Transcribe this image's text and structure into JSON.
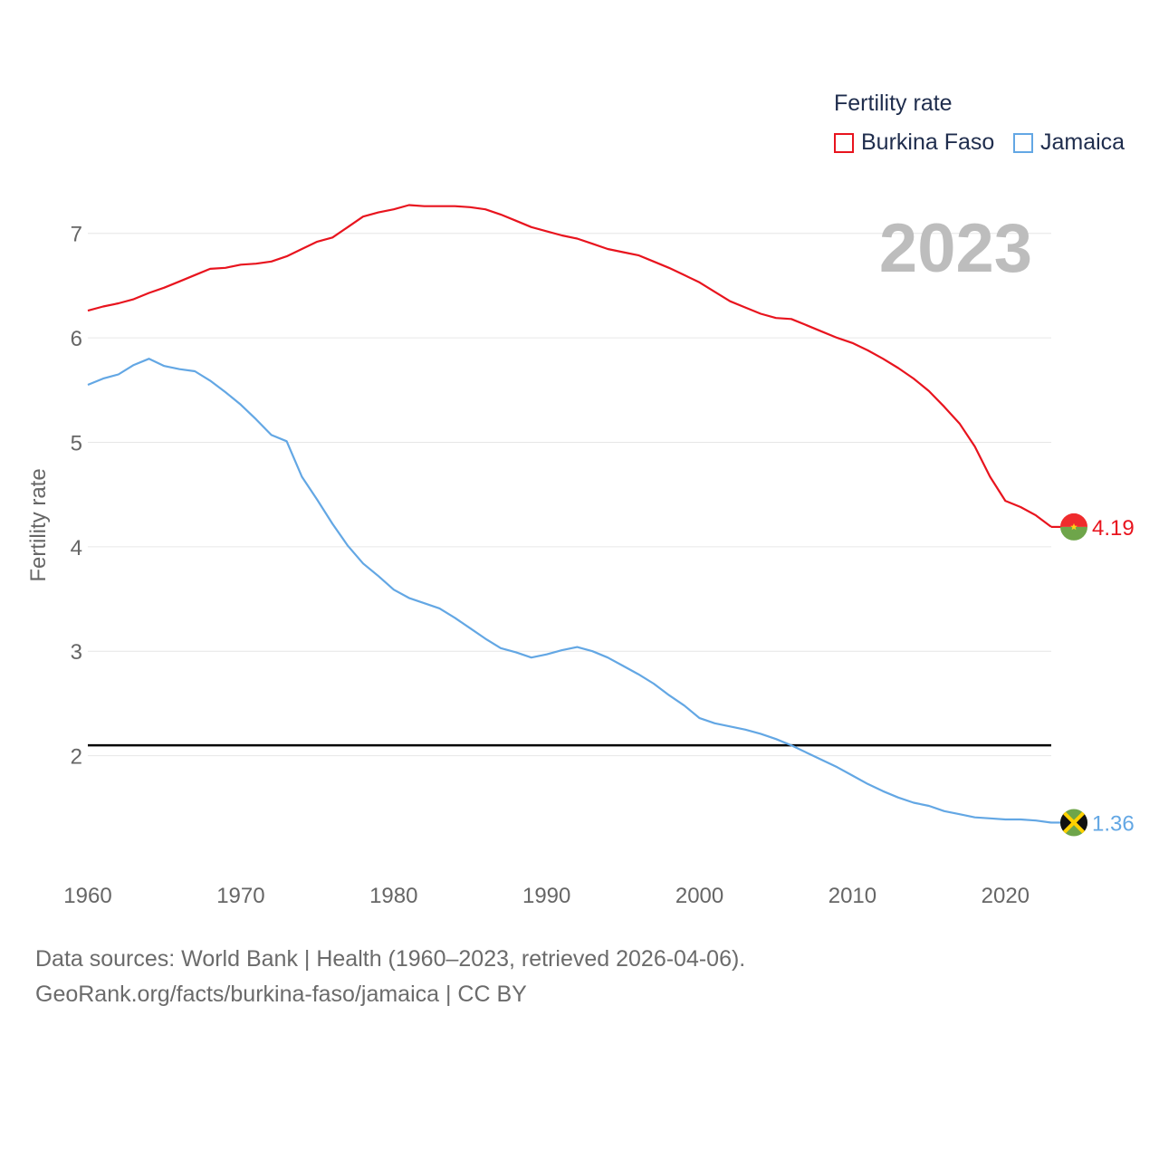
{
  "legend": {
    "title": "Fertility rate",
    "items": [
      {
        "name": "Burkina Faso",
        "color": "#e8141e"
      },
      {
        "name": "Jamaica",
        "color": "#63a7e4"
      }
    ]
  },
  "year_label": "2023",
  "footer": {
    "line1": "Data sources: World Bank | Health (1960–2023, retrieved 2026-04-06).",
    "line2": "GeoRank.org/facts/burkina-faso/jamaica | CC BY"
  },
  "chart_data": {
    "type": "line",
    "title": "",
    "xlabel": "",
    "ylabel": "Fertility rate",
    "xlim": [
      1960,
      2023
    ],
    "ylim": [
      1.0,
      7.5
    ],
    "x_ticks": [
      1960,
      1970,
      1980,
      1990,
      2000,
      2010,
      2020
    ],
    "y_ticks": [
      2,
      3,
      4,
      5,
      6,
      7
    ],
    "reference_line": 2.1,
    "grid": true,
    "x": [
      1960,
      1961,
      1962,
      1963,
      1964,
      1965,
      1966,
      1967,
      1968,
      1969,
      1970,
      1971,
      1972,
      1973,
      1974,
      1975,
      1976,
      1977,
      1978,
      1979,
      1980,
      1981,
      1982,
      1983,
      1984,
      1985,
      1986,
      1987,
      1988,
      1989,
      1990,
      1991,
      1992,
      1993,
      1994,
      1995,
      1996,
      1997,
      1998,
      1999,
      2000,
      2001,
      2002,
      2003,
      2004,
      2005,
      2006,
      2007,
      2008,
      2009,
      2010,
      2011,
      2012,
      2013,
      2014,
      2015,
      2016,
      2017,
      2018,
      2019,
      2020,
      2021,
      2022,
      2023
    ],
    "series": [
      {
        "name": "Burkina Faso",
        "color": "#e8141e",
        "end_label": "4.19",
        "values": [
          6.26,
          6.3,
          6.33,
          6.37,
          6.43,
          6.48,
          6.54,
          6.6,
          6.66,
          6.67,
          6.7,
          6.71,
          6.73,
          6.78,
          6.85,
          6.92,
          6.96,
          7.06,
          7.16,
          7.2,
          7.23,
          7.27,
          7.26,
          7.26,
          7.26,
          7.25,
          7.23,
          7.18,
          7.12,
          7.06,
          7.02,
          6.98,
          6.95,
          6.9,
          6.85,
          6.82,
          6.79,
          6.73,
          6.67,
          6.6,
          6.53,
          6.44,
          6.35,
          6.29,
          6.23,
          6.19,
          6.18,
          6.12,
          6.06,
          6.0,
          5.95,
          5.88,
          5.8,
          5.71,
          5.61,
          5.49,
          5.34,
          5.18,
          4.96,
          4.67,
          4.44,
          4.38,
          4.3,
          4.19
        ]
      },
      {
        "name": "Jamaica",
        "color": "#63a7e4",
        "end_label": "1.36",
        "values": [
          5.55,
          5.61,
          5.65,
          5.74,
          5.8,
          5.73,
          5.7,
          5.68,
          5.59,
          5.48,
          5.36,
          5.22,
          5.07,
          5.01,
          4.67,
          4.45,
          4.22,
          4.01,
          3.84,
          3.72,
          3.59,
          3.51,
          3.46,
          3.41,
          3.32,
          3.22,
          3.12,
          3.03,
          2.99,
          2.94,
          2.97,
          3.01,
          3.04,
          3.0,
          2.94,
          2.86,
          2.78,
          2.69,
          2.58,
          2.48,
          2.36,
          2.31,
          2.28,
          2.25,
          2.21,
          2.16,
          2.1,
          2.03,
          1.96,
          1.89,
          1.81,
          1.73,
          1.66,
          1.6,
          1.55,
          1.52,
          1.47,
          1.44,
          1.41,
          1.4,
          1.39,
          1.39,
          1.38,
          1.36
        ]
      }
    ]
  }
}
